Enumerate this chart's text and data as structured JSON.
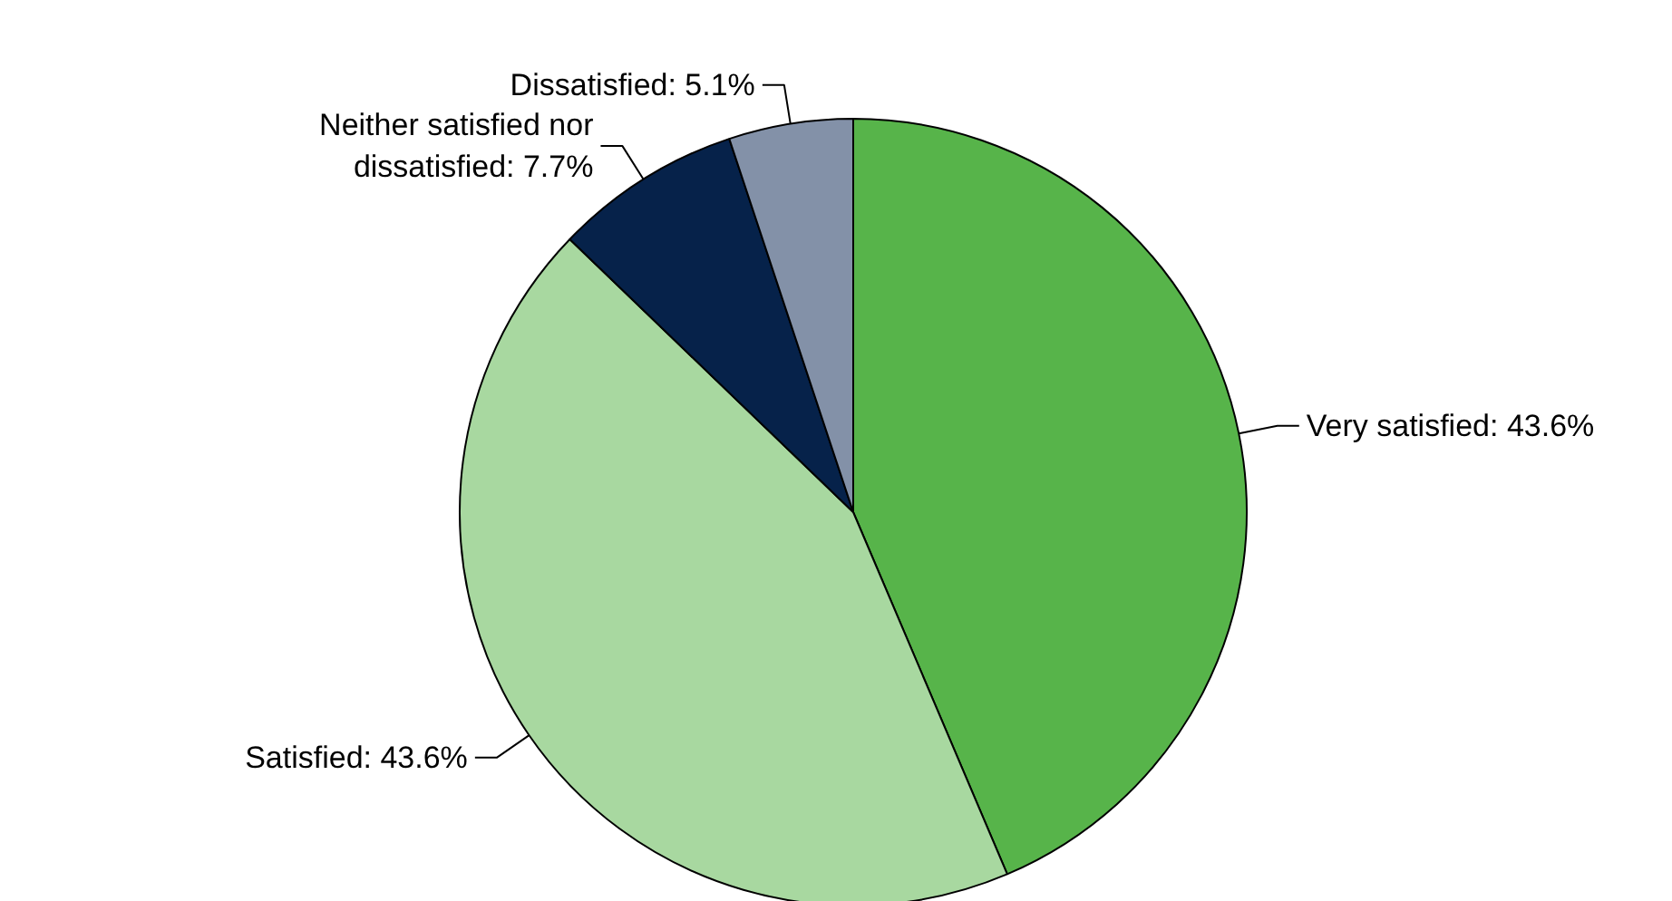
{
  "chart_data": {
    "type": "pie",
    "categories": [
      "Very satisfied",
      "Satisfied",
      "Neither satisfied nor dissatisfied",
      "Dissatisfied"
    ],
    "values": [
      43.6,
      43.6,
      7.7,
      5.1
    ],
    "value_labels": [
      "43.6%",
      "43.6%",
      "7.7%",
      "5.1%"
    ],
    "colors": [
      "#57b44a",
      "#a8d8a0",
      "#06224a",
      "#8391a8"
    ]
  }
}
